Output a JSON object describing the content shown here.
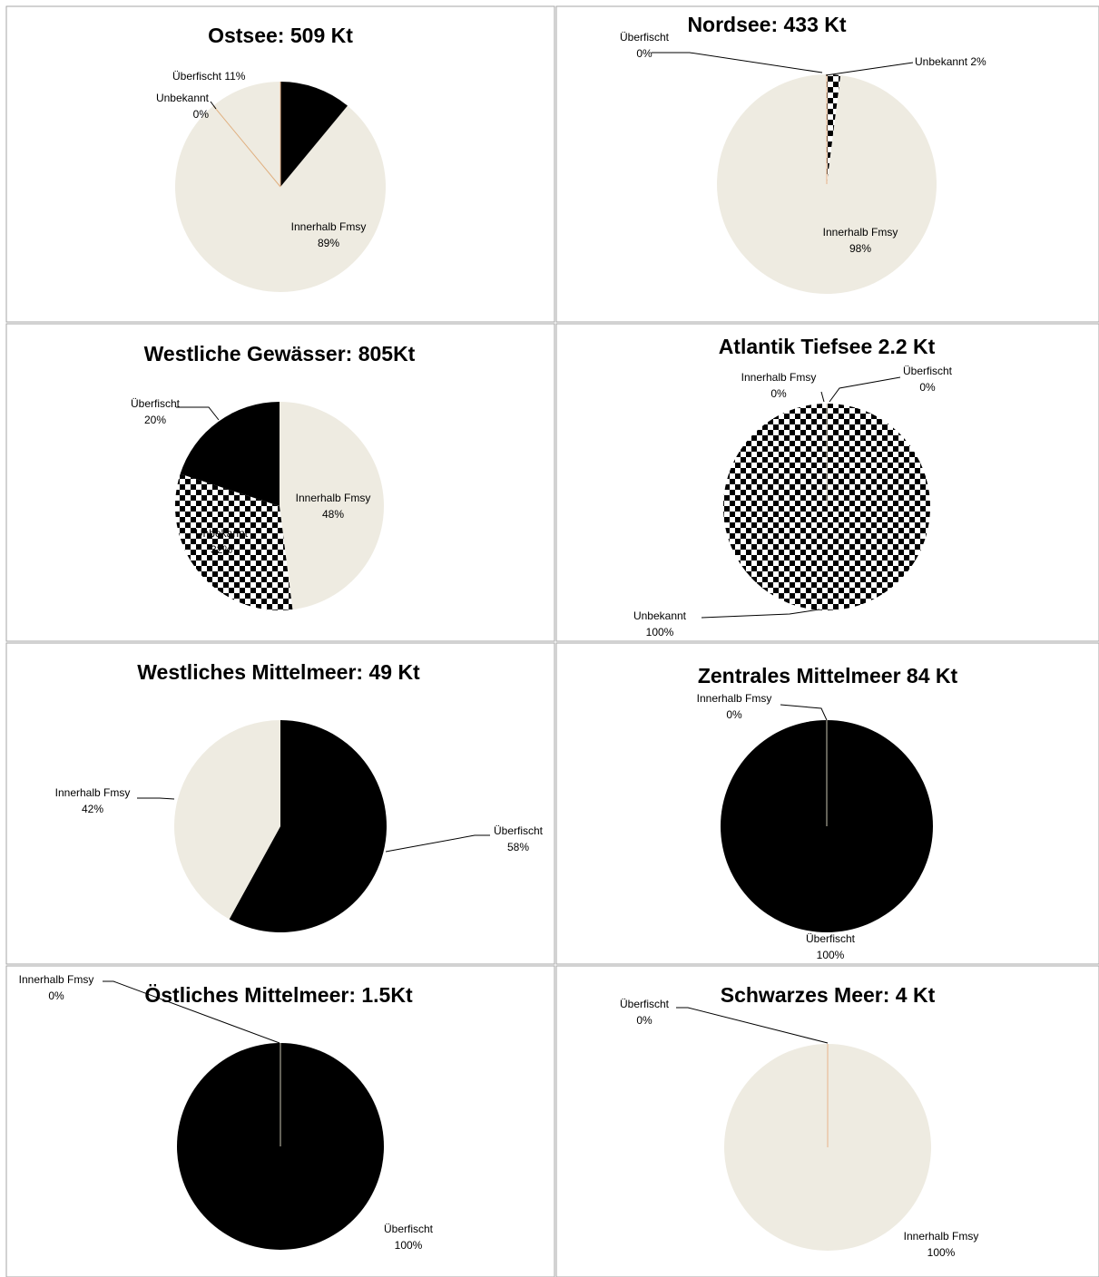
{
  "colors": {
    "innerhalb": "#eeebe1",
    "ueberfischt": "#000000",
    "unbekannt_pattern_dark": "#000000",
    "unbekannt_pattern_light": "#ffffff",
    "border": "#a6a6a6"
  },
  "chart_data": [
    {
      "type": "pie",
      "title": "Ostsee:  509 Kt",
      "slices": [
        {
          "name": "Innerhalb Fmsy",
          "value": 89,
          "label": "89%",
          "fill": "innerhalb"
        },
        {
          "name": "Unbekannt",
          "value": 0,
          "label": "0%",
          "fill": "unbekannt"
        },
        {
          "name": "Überfischt",
          "value": 11,
          "label": "11%",
          "fill": "ueberfischt"
        }
      ]
    },
    {
      "type": "pie",
      "title": "Nordsee:  433 Kt",
      "slices": [
        {
          "name": "Innerhalb Fmsy",
          "value": 98,
          "label": "98%",
          "fill": "innerhalb"
        },
        {
          "name": "Unbekannt",
          "value": 2,
          "label": "2%",
          "fill": "unbekannt"
        },
        {
          "name": "Überfischt",
          "value": 0,
          "label": "0%",
          "fill": "ueberfischt"
        }
      ]
    },
    {
      "type": "pie",
      "title": "Westliche Gewässer: 805Kt",
      "slices": [
        {
          "name": "Innerhalb Fmsy",
          "value": 48,
          "label": "48%",
          "fill": "innerhalb"
        },
        {
          "name": "Unbekannt",
          "value": 32,
          "label": "32%",
          "fill": "unbekannt"
        },
        {
          "name": "Überfischt",
          "value": 20,
          "label": "20%",
          "fill": "ueberfischt"
        }
      ]
    },
    {
      "type": "pie",
      "title": "Atlantik Tiefsee 2.2 Kt",
      "slices": [
        {
          "name": "Überfischt",
          "value": 0,
          "label": "0%",
          "fill": "ueberfischt"
        },
        {
          "name": "Unbekannt",
          "value": 100,
          "label": "100%",
          "fill": "unbekannt"
        },
        {
          "name": "Innerhalb Fmsy",
          "value": 0,
          "label": "0%",
          "fill": "innerhalb"
        }
      ]
    },
    {
      "type": "pie",
      "title": "Westliches Mittelmeer:  49 Kt",
      "slices": [
        {
          "name": "Überfischt",
          "value": 58,
          "label": "58%",
          "fill": "ueberfischt"
        },
        {
          "name": "Innerhalb Fmsy",
          "value": 42,
          "label": "42%",
          "fill": "innerhalb"
        }
      ]
    },
    {
      "type": "pie",
      "title": "Zentrales Mittelmeer  84 Kt",
      "slices": [
        {
          "name": "Überfischt",
          "value": 100,
          "label": "100%",
          "fill": "ueberfischt"
        },
        {
          "name": "Innerhalb Fmsy",
          "value": 0,
          "label": "0%",
          "fill": "innerhalb"
        }
      ]
    },
    {
      "type": "pie",
      "title": "Östliches Mittelmeer: 1.5Kt",
      "slices": [
        {
          "name": "Überfischt",
          "value": 100,
          "label": "100%",
          "fill": "ueberfischt"
        },
        {
          "name": "Innerhalb Fmsy",
          "value": 0,
          "label": "0%",
          "fill": "innerhalb"
        }
      ]
    },
    {
      "type": "pie",
      "title": "Schwarzes Meer: 4 Kt",
      "slices": [
        {
          "name": "Innerhalb Fmsy",
          "value": 100,
          "label": "100%",
          "fill": "innerhalb"
        },
        {
          "name": "Überfischt",
          "value": 0,
          "label": "0%",
          "fill": "ueberfischt"
        }
      ]
    }
  ]
}
